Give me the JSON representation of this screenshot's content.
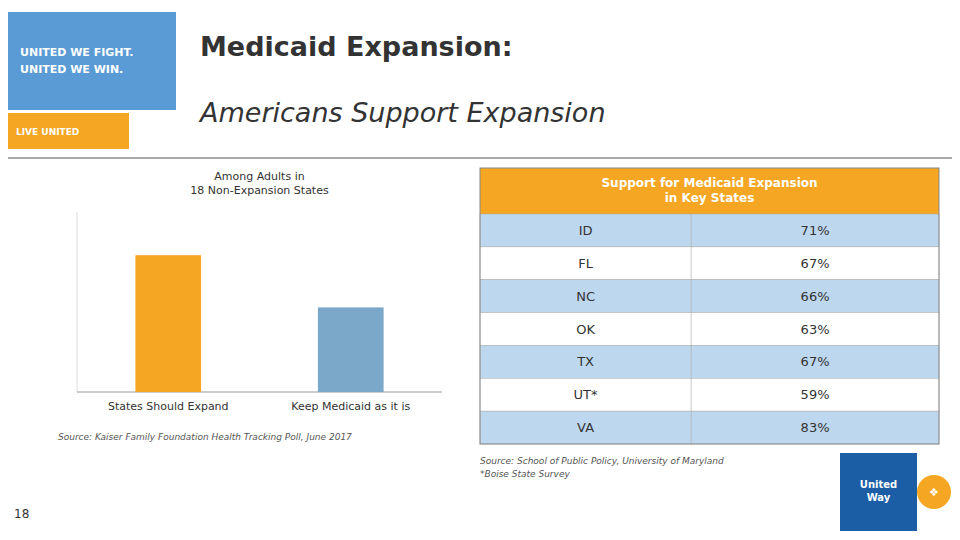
{
  "page": {
    "title": [
      "Medicaid Expansion:",
      "Americans Support Expansion"
    ],
    "title_color": "#333333",
    "divider_color": "#555555",
    "logo_text": [
      "UNITED WE FIGHT.\nUNITED WE WIN.",
      "LIVE UNITED"
    ],
    "logo_colors": [
      "#5B9BD5",
      "#F5A623"
    ],
    "brand": "United\nWay",
    "brand_icon": "❖",
    "brand_colors": [
      "#1B5EA6",
      "#F5A623"
    ],
    "page_number": "18"
  },
  "chart_data": [
    {
      "type": "bar",
      "subtitle": "Among Adults in\n18 Non-Expansion States",
      "categories": [
        "States Should Expand",
        "Keep Medicaid as it is"
      ],
      "values": [
        76,
        47
      ],
      "colors": [
        "#F5A623",
        "#7BA7C9"
      ],
      "ylim": [
        0,
        100
      ],
      "grid": false,
      "tick_labels": "x",
      "note": "Source: Kaiser Family Foundation Health Tracking Poll, June 2017"
    },
    {
      "type": "table",
      "title": "Support for Medicaid Expansion\nin Key States",
      "color": "#F5A623",
      "categories": [
        "ID",
        "FL",
        "NC",
        "OK",
        "TX",
        "UT*",
        "VA"
      ],
      "values": [
        71,
        67,
        66,
        63,
        67,
        59,
        83
      ],
      "value_labels": [
        "71%",
        "67%",
        "66%",
        "63%",
        "67%",
        "59%",
        "83%"
      ],
      "colors": [
        "#BDD7EE",
        "#ffffff",
        "#BDD7EE",
        "#ffffff",
        "#BDD7EE",
        "#ffffff",
        "#BDD7EE"
      ],
      "note": "Source: School of Public Policy, University of Maryland\n*Boise State Survey"
    }
  ]
}
